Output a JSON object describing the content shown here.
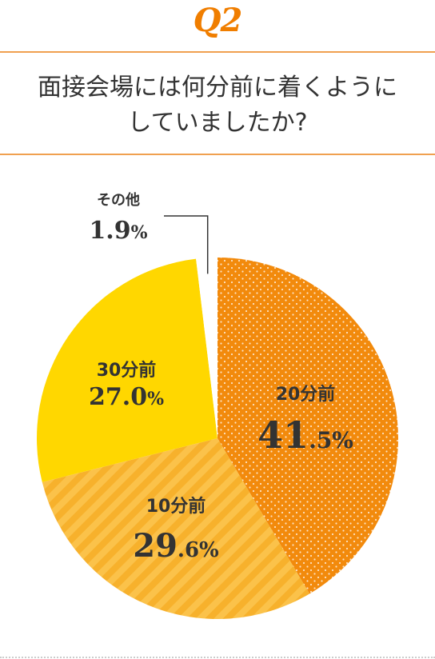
{
  "header": {
    "question_number": "Q2",
    "question_line1": "面接会場には何分前に着くように",
    "question_line2": "していましたか?"
  },
  "colors": {
    "accent": "#f07e00",
    "rule": "#f0a050",
    "slice_20": "#f28a0c",
    "slice_10": "#f7b12c",
    "slice_30": "#ffd700",
    "slice_other": "#ffffff"
  },
  "chart_data": {
    "type": "pie",
    "slices": [
      {
        "label": "20分前",
        "value": 41.5,
        "int_part": "41",
        "dec_part": ".5%",
        "pattern": "dots"
      },
      {
        "label": "10分前",
        "value": 29.6,
        "int_part": "29",
        "dec_part": ".6%",
        "pattern": "stripes"
      },
      {
        "label": "30分前",
        "value": 27.0,
        "int_part": "27.0",
        "dec_part": "%",
        "pattern": "solid"
      },
      {
        "label": "その他",
        "value": 1.9,
        "int_part": "1.9",
        "dec_part": "%",
        "pattern": "solid"
      }
    ],
    "start": "12 o'clock",
    "direction": "clockwise"
  }
}
